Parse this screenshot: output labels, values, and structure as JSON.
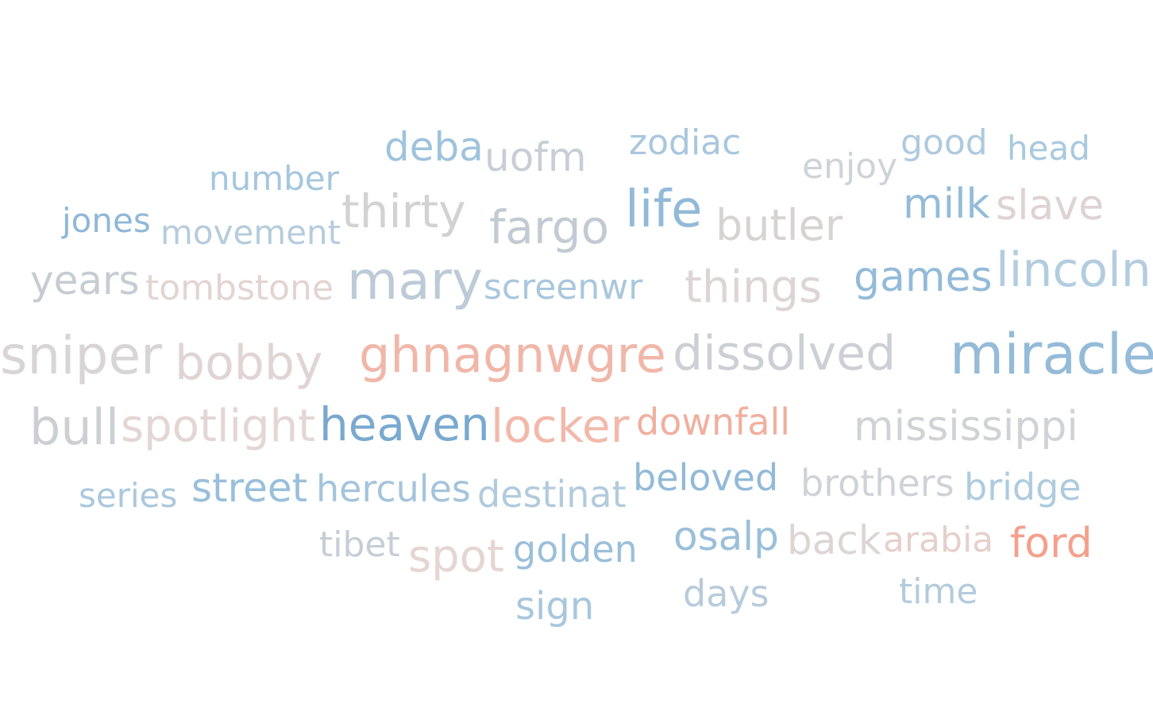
{
  "words": [
    {
      "text": "zodiac",
      "color": "#a9c7dd"
    },
    {
      "text": "good",
      "color": "#aecadf"
    },
    {
      "text": "head",
      "color": "#a9c9de"
    },
    {
      "text": "deba",
      "color": "#9fc3dc"
    },
    {
      "text": "uofm",
      "color": "#c8ced6"
    },
    {
      "text": "enjoy",
      "color": "#cfd3d9"
    },
    {
      "text": "number",
      "color": "#a5c7de"
    },
    {
      "text": "milk",
      "color": "#94bcd9"
    },
    {
      "text": "slave",
      "color": "#ddd3d2"
    },
    {
      "text": "jones",
      "color": "#8fb8d8"
    },
    {
      "text": "thirty",
      "color": "#d2d2d2"
    },
    {
      "text": "life",
      "color": "#92bad8"
    },
    {
      "text": "fargo",
      "color": "#c2cbd3"
    },
    {
      "text": "butler",
      "color": "#d6d3d3"
    },
    {
      "text": "movement",
      "color": "#b6ccdc"
    },
    {
      "text": "lincoln",
      "color": "#b3cddf"
    },
    {
      "text": "games",
      "color": "#92bbd9"
    },
    {
      "text": "years",
      "color": "#c6ccd3"
    },
    {
      "text": "tombstone",
      "color": "#e3d4d2"
    },
    {
      "text": "mary",
      "color": "#bccbd7"
    },
    {
      "text": "screenwr",
      "color": "#a9c7dd"
    },
    {
      "text": "things",
      "color": "#ddd5d5"
    },
    {
      "text": "sniper",
      "color": "#d9d4d5"
    },
    {
      "text": "bobby",
      "color": "#e0d5d4"
    },
    {
      "text": "ghnagnwgre",
      "color": "#f0b7a9"
    },
    {
      "text": "dissolved",
      "color": "#ccd0d5"
    },
    {
      "text": "miracle",
      "color": "#94bbd8"
    },
    {
      "text": "bull",
      "color": "#ccd0d5"
    },
    {
      "text": "spotlight",
      "color": "#e3d6d4"
    },
    {
      "text": "heaven",
      "color": "#7aa9cf"
    },
    {
      "text": "locker",
      "color": "#f2b9ab"
    },
    {
      "text": "downfall",
      "color": "#f1af9e"
    },
    {
      "text": "mississippi",
      "color": "#d0d2d6"
    },
    {
      "text": "series",
      "color": "#abc8dd"
    },
    {
      "text": "street",
      "color": "#99bfda"
    },
    {
      "text": "hercules",
      "color": "#a4c4dc"
    },
    {
      "text": "destinat",
      "color": "#b2cbdc"
    },
    {
      "text": "beloved",
      "color": "#92bad8"
    },
    {
      "text": "brothers",
      "color": "#cfd2d7"
    },
    {
      "text": "bridge",
      "color": "#aecbdf"
    },
    {
      "text": "tibet",
      "color": "#c5ced6"
    },
    {
      "text": "spot",
      "color": "#e5d6d2"
    },
    {
      "text": "golden",
      "color": "#9bbfda"
    },
    {
      "text": "osalp",
      "color": "#9bbfda"
    },
    {
      "text": "back",
      "color": "#ddd5d4"
    },
    {
      "text": "arabia",
      "color": "#e6d0cb"
    },
    {
      "text": "ford",
      "color": "#f4a08c"
    },
    {
      "text": "sign",
      "color": "#a7c7de"
    },
    {
      "text": "days",
      "color": "#b7cbdb"
    },
    {
      "text": "time",
      "color": "#b4cbdc"
    }
  ]
}
